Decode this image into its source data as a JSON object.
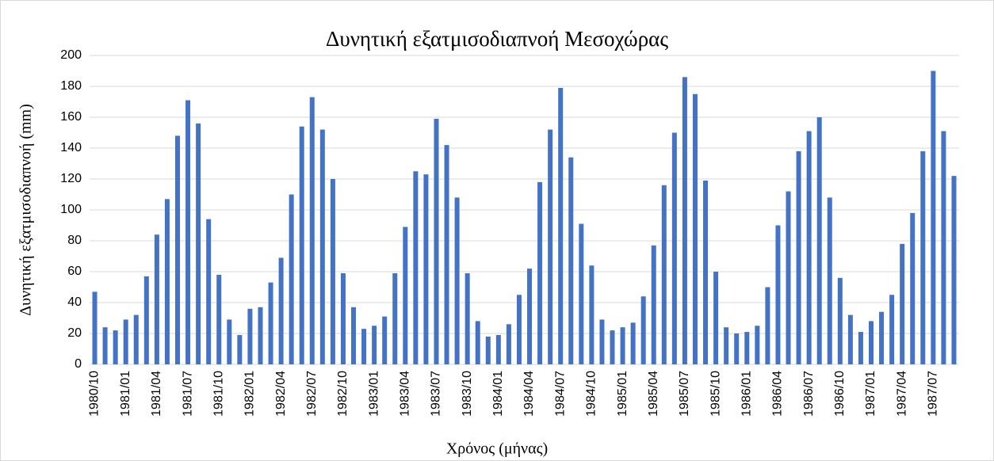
{
  "chart_data": {
    "type": "bar",
    "title": "Δυνητική εξατμισοδιαπνοή Μεσοχώρας",
    "x_label": "Χρόνος (μήνας)",
    "y_label": "Δυνητική εξατμισοδιαπνοή (mm)",
    "color": "#4472c4",
    "grid": true,
    "ylim": [
      0,
      200
    ],
    "yticks": [
      0,
      20,
      40,
      60,
      80,
      100,
      120,
      140,
      160,
      180,
      200
    ],
    "categories": [
      "1980/10",
      null,
      null,
      "1981/01",
      null,
      null,
      "1981/04",
      null,
      null,
      "1981/07",
      null,
      null,
      "1981/10",
      null,
      null,
      "1982/01",
      null,
      null,
      "1982/04",
      null,
      null,
      "1982/07",
      null,
      null,
      "1982/10",
      null,
      null,
      "1983/01",
      null,
      null,
      "1983/04",
      null,
      null,
      "1983/07",
      null,
      null,
      "1983/10",
      null,
      null,
      "1984/01",
      null,
      null,
      "1984/04",
      null,
      null,
      "1984/07",
      null,
      null,
      "1984/10",
      null,
      null,
      "1985/01",
      null,
      null,
      "1985/04",
      null,
      null,
      "1985/07",
      null,
      null,
      "1985/10",
      null,
      null,
      "1986/01",
      null,
      null,
      "1986/04",
      null,
      null,
      "1986/07",
      null,
      null,
      "1986/10",
      null,
      null,
      "1987/01",
      null,
      null,
      "1987/04",
      null,
      null,
      "1987/07",
      null,
      null
    ],
    "values": [
      47,
      24,
      22,
      29,
      32,
      57,
      84,
      107,
      148,
      171,
      156,
      94,
      58,
      29,
      19,
      36,
      37,
      53,
      69,
      110,
      154,
      173,
      152,
      120,
      59,
      37,
      23,
      25,
      31,
      59,
      89,
      125,
      123,
      159,
      142,
      108,
      59,
      28,
      18,
      19,
      26,
      45,
      62,
      118,
      152,
      179,
      134,
      91,
      64,
      29,
      22,
      24,
      27,
      44,
      77,
      116,
      150,
      186,
      175,
      119,
      60,
      24,
      20,
      21,
      25,
      50,
      90,
      112,
      138,
      151,
      160,
      108,
      56,
      32,
      21,
      28,
      34,
      45,
      78,
      98,
      138,
      190,
      151,
      122
    ]
  }
}
